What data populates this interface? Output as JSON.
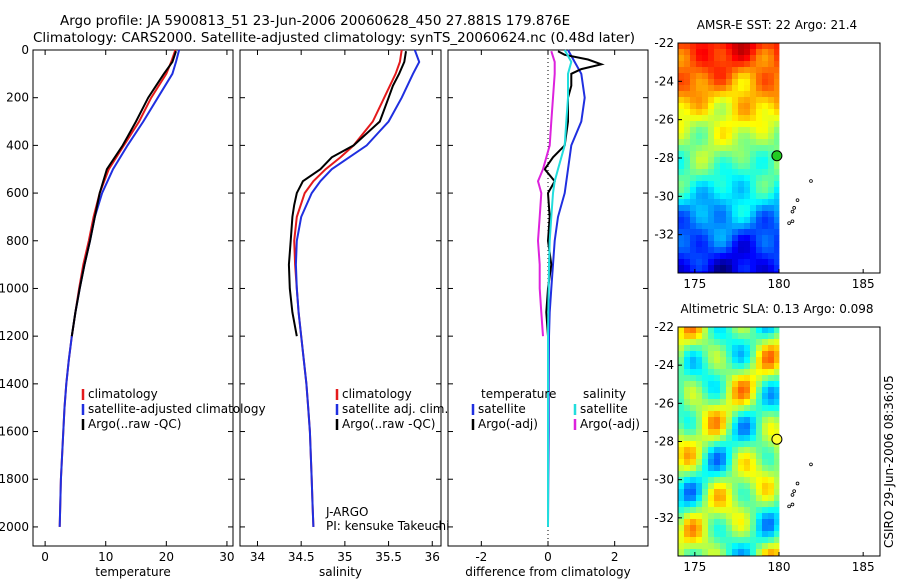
{
  "title_line1": "Argo profile: JA 5900813_51 23-Jun-2006 20060628_450 27.881S 179.876E",
  "title_line2": "Climatology: CARS2000. Satellite-adjusted climatology: synTS_20060624.nc (0.48d later)",
  "timestamp": "CSIRO 29-Jun-2006 08:36:05",
  "colors": {
    "climatology": "#e41a1c",
    "satellite": "#1f2fe0",
    "argo": "#000000",
    "salinity_sat": "#22dddd",
    "salinity_argo": "#dd22dd"
  },
  "chart_data": [
    {
      "id": "temperature",
      "type": "line",
      "xlabel": "temperature",
      "ylabel": "",
      "xlim": [
        -2,
        31
      ],
      "ylim": [
        2080,
        0
      ],
      "xticks": [
        0,
        10,
        20,
        30
      ],
      "yticks": [
        0,
        200,
        400,
        600,
        800,
        1000,
        1200,
        1400,
        1600,
        1800,
        2000
      ],
      "legend": {
        "placement": "lower-center",
        "entries": [
          "climatology",
          "satellite-adjusted climatology",
          "Argo(..raw -QC)"
        ]
      },
      "series": [
        {
          "name": "climatology",
          "color_key": "climatology",
          "depth": [
            0,
            50,
            100,
            200,
            300,
            400,
            500,
            600,
            700,
            800,
            900,
            1000,
            1100,
            1200,
            1300,
            1400,
            1500,
            1600,
            1700,
            1800,
            1900,
            2000
          ],
          "values": [
            21.5,
            20.8,
            20,
            17.5,
            15.5,
            13,
            10.5,
            9,
            8,
            7.2,
            6.3,
            5.6,
            5,
            4.4,
            3.9,
            3.5,
            3.2,
            3,
            2.8,
            2.6,
            2.5,
            2.4
          ]
        },
        {
          "name": "satellite-adjusted climatology",
          "color_key": "satellite",
          "depth": [
            0,
            50,
            100,
            200,
            300,
            400,
            500,
            600,
            700,
            800,
            900,
            1000,
            1100,
            1200,
            1300,
            1400,
            1500,
            1600,
            1700,
            1800,
            1900,
            2000
          ],
          "values": [
            22.1,
            21.6,
            21,
            18.6,
            16.2,
            13.6,
            11.2,
            9.4,
            8.2,
            7.4,
            6.5,
            5.7,
            5,
            4.4,
            3.9,
            3.5,
            3.2,
            3,
            2.8,
            2.6,
            2.5,
            2.4
          ]
        },
        {
          "name": "Argo(..raw -QC)",
          "color_key": "argo",
          "depth": [
            5,
            50,
            100,
            150,
            200,
            300,
            400,
            500,
            600,
            700,
            800,
            900,
            1000,
            1100,
            1200
          ],
          "values": [
            21.6,
            21,
            19.6,
            18.3,
            17,
            15,
            12.8,
            10.2,
            9,
            8.2,
            7.4,
            6.5,
            5.7,
            5,
            4.4
          ]
        }
      ]
    },
    {
      "id": "salinity",
      "type": "line",
      "xlabel": "salinity",
      "ylabel": "",
      "xlim": [
        33.8,
        36.1
      ],
      "ylim": [
        2080,
        0
      ],
      "xticks": [
        34,
        34.5,
        35,
        35.5,
        36
      ],
      "legend": {
        "placement": "lower-center",
        "entries": [
          "climatology",
          "satellite adj. clim.",
          "Argo(..raw -QC)"
        ]
      },
      "annotation": [
        "J-ARGO",
        "PI: kensuke Takeuchi"
      ],
      "series": [
        {
          "name": "climatology",
          "color_key": "climatology",
          "depth": [
            0,
            50,
            100,
            200,
            300,
            400,
            450,
            500,
            550,
            600,
            700,
            800,
            900,
            1000,
            1100,
            1200,
            1300,
            1400,
            1500,
            1600,
            1700,
            1800,
            1900,
            2000
          ],
          "values": [
            35.65,
            35.63,
            35.58,
            35.45,
            35.32,
            35.1,
            34.95,
            34.78,
            34.64,
            34.54,
            34.45,
            34.42,
            34.43,
            34.45,
            34.47,
            34.5,
            34.53,
            34.56,
            34.58,
            34.6,
            34.61,
            34.62,
            34.63,
            34.64
          ]
        },
        {
          "name": "satellite adj. clim.",
          "color_key": "satellite",
          "depth": [
            0,
            50,
            100,
            200,
            300,
            400,
            450,
            500,
            550,
            600,
            700,
            800,
            900,
            1000,
            1100,
            1200,
            1300,
            1400,
            1500,
            1600,
            1700,
            1800,
            1900,
            2000
          ],
          "values": [
            35.8,
            35.85,
            35.78,
            35.65,
            35.5,
            35.25,
            35.05,
            34.85,
            34.72,
            34.62,
            34.5,
            34.45,
            34.44,
            34.45,
            34.47,
            34.5,
            34.53,
            34.56,
            34.58,
            34.6,
            34.61,
            34.62,
            34.63,
            34.64
          ]
        },
        {
          "name": "Argo(..raw -QC)",
          "color_key": "argo",
          "depth": [
            5,
            50,
            100,
            150,
            200,
            300,
            400,
            450,
            500,
            550,
            600,
            650,
            700,
            800,
            900,
            1000,
            1100,
            1200
          ],
          "values": [
            35.7,
            35.68,
            35.62,
            35.55,
            35.5,
            35.4,
            35.1,
            34.85,
            34.72,
            34.52,
            34.45,
            34.42,
            34.4,
            34.38,
            34.36,
            34.37,
            34.4,
            34.45
          ]
        }
      ]
    },
    {
      "id": "difference",
      "type": "line",
      "xlabel": "difference from climatology",
      "ylabel": "",
      "xlim": [
        -3,
        3
      ],
      "ylim": [
        2080,
        0
      ],
      "xticks": [
        -2,
        0,
        2
      ],
      "legend": {
        "placement": "lower-center",
        "groups": [
          {
            "heading": "temperature",
            "entries": [
              "satellite",
              "Argo(-adj)"
            ]
          },
          {
            "heading": "salinity",
            "entries": [
              "satellite",
              "Argo(-adj)"
            ]
          }
        ]
      },
      "series": [
        {
          "name": "temperature satellite",
          "color_key": "satellite",
          "depth": [
            0,
            100,
            200,
            300,
            400,
            500,
            600,
            700,
            800,
            900,
            1000,
            1100,
            1200,
            1400,
            1600,
            1800,
            2000
          ],
          "values": [
            0.6,
            1.0,
            1.1,
            1.0,
            0.7,
            0.6,
            0.5,
            0.3,
            0.2,
            0.15,
            0.1,
            0.05,
            0.03,
            0.02,
            0.02,
            0.01,
            0.0
          ]
        },
        {
          "name": "temperature Argo(-adj)",
          "color_key": "argo",
          "depth": [
            5,
            20,
            40,
            60,
            80,
            100,
            150,
            200,
            300,
            400,
            450,
            500,
            550,
            600,
            700,
            800,
            900,
            1000,
            1100,
            1200
          ],
          "values": [
            0.3,
            0.5,
            1.2,
            1.6,
            1.0,
            0.7,
            0.7,
            0.6,
            0.6,
            0.5,
            0.15,
            -0.1,
            0.2,
            0.0,
            0.05,
            0.0,
            0.1,
            0.0,
            -0.05,
            0.0
          ]
        },
        {
          "name": "salinity satellite",
          "color_key": "salinity_sat",
          "depth": [
            0,
            50,
            100,
            200,
            300,
            400,
            500,
            550,
            600,
            700,
            800,
            900,
            1000,
            1100,
            1200,
            1400,
            1600,
            1800,
            2000
          ],
          "values": [
            0.5,
            0.7,
            0.6,
            0.6,
            0.55,
            0.5,
            0.3,
            0.2,
            0.15,
            0.1,
            0.05,
            0.03,
            0.02,
            0.01,
            0.0,
            0.0,
            0.0,
            0.0,
            0.0
          ]
        },
        {
          "name": "salinity Argo(-adj)",
          "color_key": "salinity_argo",
          "depth": [
            5,
            50,
            100,
            200,
            300,
            400,
            500,
            550,
            600,
            700,
            800,
            900,
            1000,
            1100,
            1200
          ],
          "values": [
            0.1,
            0.2,
            0.2,
            0.15,
            0.1,
            0.05,
            -0.15,
            -0.3,
            -0.2,
            -0.25,
            -0.3,
            -0.25,
            -0.25,
            -0.2,
            -0.15
          ]
        }
      ]
    },
    {
      "id": "amsr-map",
      "type": "heatmap",
      "title": "AMSR-E SST: 22 Argo: 21.4",
      "xlim": [
        174,
        186
      ],
      "ylim": [
        -34,
        -22
      ],
      "xticks": [
        175,
        180,
        185
      ],
      "yticks": [
        -22,
        -24,
        -26,
        -28,
        -30,
        -32
      ],
      "marker": {
        "lon": 179.876,
        "lat": -27.881
      },
      "track": [
        [
          181.9,
          -29.2
        ],
        [
          181.1,
          -30.2
        ],
        [
          180.9,
          -30.6
        ],
        [
          180.8,
          -30.8
        ],
        [
          180.8,
          -31.3
        ],
        [
          180.6,
          -31.4
        ]
      ]
    },
    {
      "id": "sla-map",
      "type": "heatmap",
      "title": "Altimetric SLA: 0.13 Argo: 0.098",
      "xlim": [
        174,
        186
      ],
      "ylim": [
        -34,
        -22
      ],
      "xticks": [
        175,
        180,
        185
      ],
      "yticks": [
        -22,
        -24,
        -26,
        -28,
        -30,
        -32
      ],
      "marker": {
        "lon": 179.876,
        "lat": -27.881
      },
      "track": [
        [
          181.9,
          -29.2
        ],
        [
          181.1,
          -30.2
        ],
        [
          180.9,
          -30.6
        ],
        [
          180.8,
          -30.8
        ],
        [
          180.8,
          -31.3
        ],
        [
          180.6,
          -31.4
        ]
      ]
    }
  ]
}
